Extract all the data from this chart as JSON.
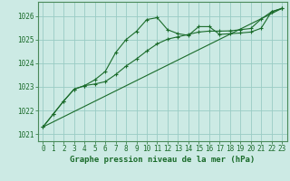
{
  "title": "Graphe pression niveau de la mer (hPa)",
  "background_color": "#cceae4",
  "grid_color": "#99ccc4",
  "line_color": "#1a6b2a",
  "border_color": "#4a8a5a",
  "xlim": [
    -0.5,
    23.5
  ],
  "ylim": [
    1020.7,
    1026.6
  ],
  "yticks": [
    1021,
    1022,
    1023,
    1024,
    1025,
    1026
  ],
  "xticks": [
    0,
    1,
    2,
    3,
    4,
    5,
    6,
    7,
    8,
    9,
    10,
    11,
    12,
    13,
    14,
    15,
    16,
    17,
    18,
    19,
    20,
    21,
    22,
    23
  ],
  "series1_x": [
    0,
    1,
    2,
    3,
    4,
    5,
    6,
    7,
    8,
    9,
    10,
    11,
    12,
    13,
    14,
    15,
    16,
    17,
    18,
    19,
    20,
    21,
    22,
    23
  ],
  "series1_y": [
    1021.3,
    1021.85,
    1022.4,
    1022.9,
    1023.05,
    1023.3,
    1023.65,
    1024.45,
    1025.0,
    1025.35,
    1025.85,
    1025.93,
    1025.42,
    1025.25,
    1025.18,
    1025.55,
    1025.55,
    1025.22,
    1025.25,
    1025.28,
    1025.32,
    1025.48,
    1026.18,
    1026.32
  ],
  "series2_x": [
    0,
    1,
    2,
    3,
    4,
    5,
    6,
    7,
    8,
    9,
    10,
    11,
    12,
    13,
    14,
    15,
    16,
    17,
    18,
    19,
    20,
    21,
    22,
    23
  ],
  "series2_y": [
    1021.3,
    1021.85,
    1022.4,
    1022.9,
    1023.05,
    1023.12,
    1023.22,
    1023.52,
    1023.88,
    1024.18,
    1024.52,
    1024.82,
    1025.02,
    1025.12,
    1025.22,
    1025.32,
    1025.36,
    1025.36,
    1025.37,
    1025.42,
    1025.47,
    1025.87,
    1026.18,
    1026.32
  ],
  "series3_x": [
    0,
    23
  ],
  "series3_y": [
    1021.3,
    1026.32
  ],
  "marker": "+",
  "markersize": 3.5,
  "linewidth": 0.8,
  "tick_fontsize": 5.5,
  "xlabel_fontsize": 6.5
}
